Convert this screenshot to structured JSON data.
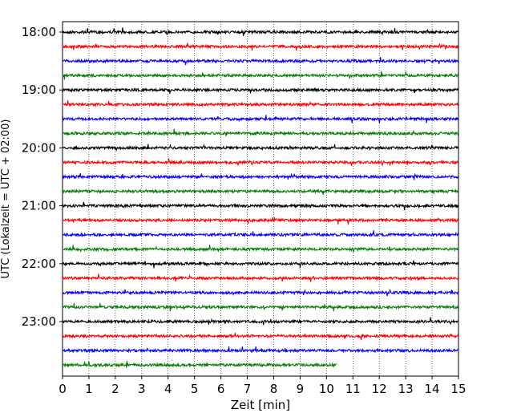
{
  "chart_data": {
    "type": "line",
    "title": "",
    "xlabel": "Zeit  [min]",
    "ylabel": "UTC (Lokalzeit = UTC + 02:00)",
    "xlim": [
      0,
      15
    ],
    "x_ticks": [
      "0",
      "1",
      "2",
      "3",
      "4",
      "5",
      "6",
      "7",
      "8",
      "9",
      "10",
      "11",
      "12",
      "13",
      "14",
      "15"
    ],
    "y_ticks": [
      "18:00",
      "19:00",
      "20:00",
      "21:00",
      "22:00",
      "23:00"
    ],
    "vertical_grid": true,
    "trace_interval_min": 15,
    "trace_colors": [
      "#000000",
      "#ff0000",
      "#0000ff",
      "#008000"
    ],
    "series": [
      {
        "start": "18:00",
        "end_min": 15
      },
      {
        "start": "18:15",
        "end_min": 15
      },
      {
        "start": "18:30",
        "end_min": 15
      },
      {
        "start": "18:45",
        "end_min": 15
      },
      {
        "start": "19:00",
        "end_min": 15
      },
      {
        "start": "19:15",
        "end_min": 15
      },
      {
        "start": "19:30",
        "end_min": 15
      },
      {
        "start": "19:45",
        "end_min": 15
      },
      {
        "start": "20:00",
        "end_min": 15
      },
      {
        "start": "20:15",
        "end_min": 15
      },
      {
        "start": "20:30",
        "end_min": 15
      },
      {
        "start": "20:45",
        "end_min": 15
      },
      {
        "start": "21:00",
        "end_min": 15
      },
      {
        "start": "21:15",
        "end_min": 15
      },
      {
        "start": "21:30",
        "end_min": 15
      },
      {
        "start": "21:45",
        "end_min": 15
      },
      {
        "start": "22:00",
        "end_min": 15
      },
      {
        "start": "22:15",
        "end_min": 15
      },
      {
        "start": "22:30",
        "end_min": 15
      },
      {
        "start": "22:45",
        "end_min": 15
      },
      {
        "start": "23:00",
        "end_min": 15
      },
      {
        "start": "23:15",
        "end_min": 15
      },
      {
        "start": "23:30",
        "end_min": 15
      },
      {
        "start": "23:45",
        "end_min": 10.4
      }
    ]
  }
}
